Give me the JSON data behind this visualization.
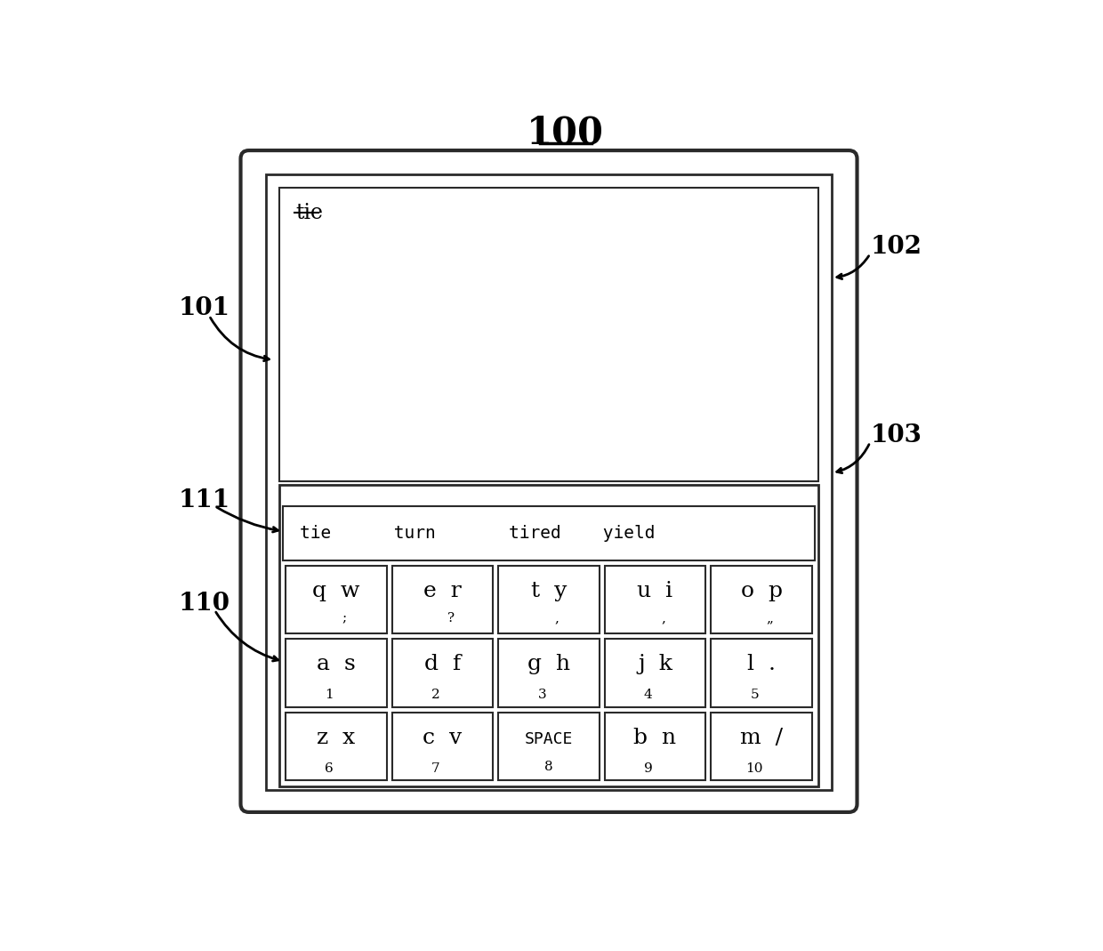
{
  "title": "100",
  "label_101": "101",
  "label_102": "102",
  "label_103": "103",
  "label_110": "110",
  "label_111": "111",
  "display_text": "tie",
  "suggestions": "tie      turn       tired    yield",
  "row0": [
    {
      "main": "q  w",
      "sub": ";"
    },
    {
      "main": "e  r",
      "sub": "?"
    },
    {
      "main": "t  y",
      "sub": ","
    },
    {
      "main": "u  i",
      "sub": ","
    },
    {
      "main": "o  p",
      "sub": "„"
    }
  ],
  "row1": [
    {
      "main": "a  s",
      "num": "1"
    },
    {
      "main": "d  f",
      "num": "2"
    },
    {
      "main": "g  h",
      "num": "3"
    },
    {
      "main": "j  k",
      "num": "4"
    },
    {
      "main": "l  .",
      "num": "5"
    }
  ],
  "row2": [
    {
      "main": "z  x",
      "num": "6"
    },
    {
      "main": "c  v",
      "num": "7"
    },
    {
      "main": "SPACE",
      "num": "8"
    },
    {
      "main": "b  n",
      "num": "9"
    },
    {
      "main": "m  /",
      "num": "10"
    }
  ],
  "bg_color": "#ffffff",
  "text_color": "#000000"
}
